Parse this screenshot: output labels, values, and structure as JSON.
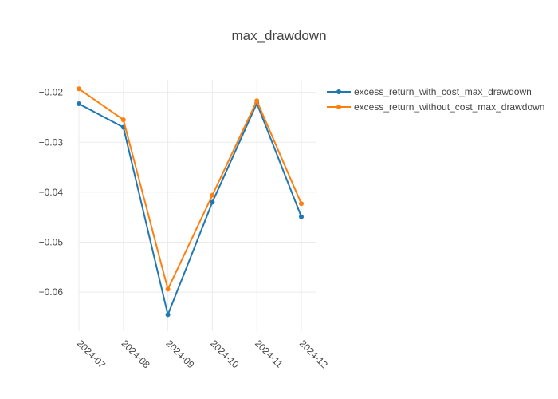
{
  "chart_data": {
    "type": "line",
    "title": "max_drawdown",
    "xlabel": "",
    "ylabel": "",
    "categories": [
      "2024-07",
      "2024-08",
      "2024-09",
      "2024-10",
      "2024-11",
      "2024-12"
    ],
    "ylim": [
      -0.0678,
      -0.0175
    ],
    "yticks": [
      -0.02,
      -0.03,
      -0.04,
      -0.05,
      -0.06
    ],
    "ytick_labels": [
      "−0.02",
      "−0.03",
      "−0.04",
      "−0.05",
      "−0.06"
    ],
    "grid": true,
    "legend_position": "top-right",
    "series": [
      {
        "name": "excess_return_with_cost_max_drawdown",
        "color": "#1f77b4",
        "values": [
          -0.0223,
          -0.027,
          -0.0645,
          -0.042,
          -0.0222,
          -0.0449
        ]
      },
      {
        "name": "excess_return_without_cost_max_drawdown",
        "color": "#ff7f0e",
        "values": [
          -0.0193,
          -0.0255,
          -0.0594,
          -0.0406,
          -0.0217,
          -0.0423
        ]
      }
    ]
  }
}
